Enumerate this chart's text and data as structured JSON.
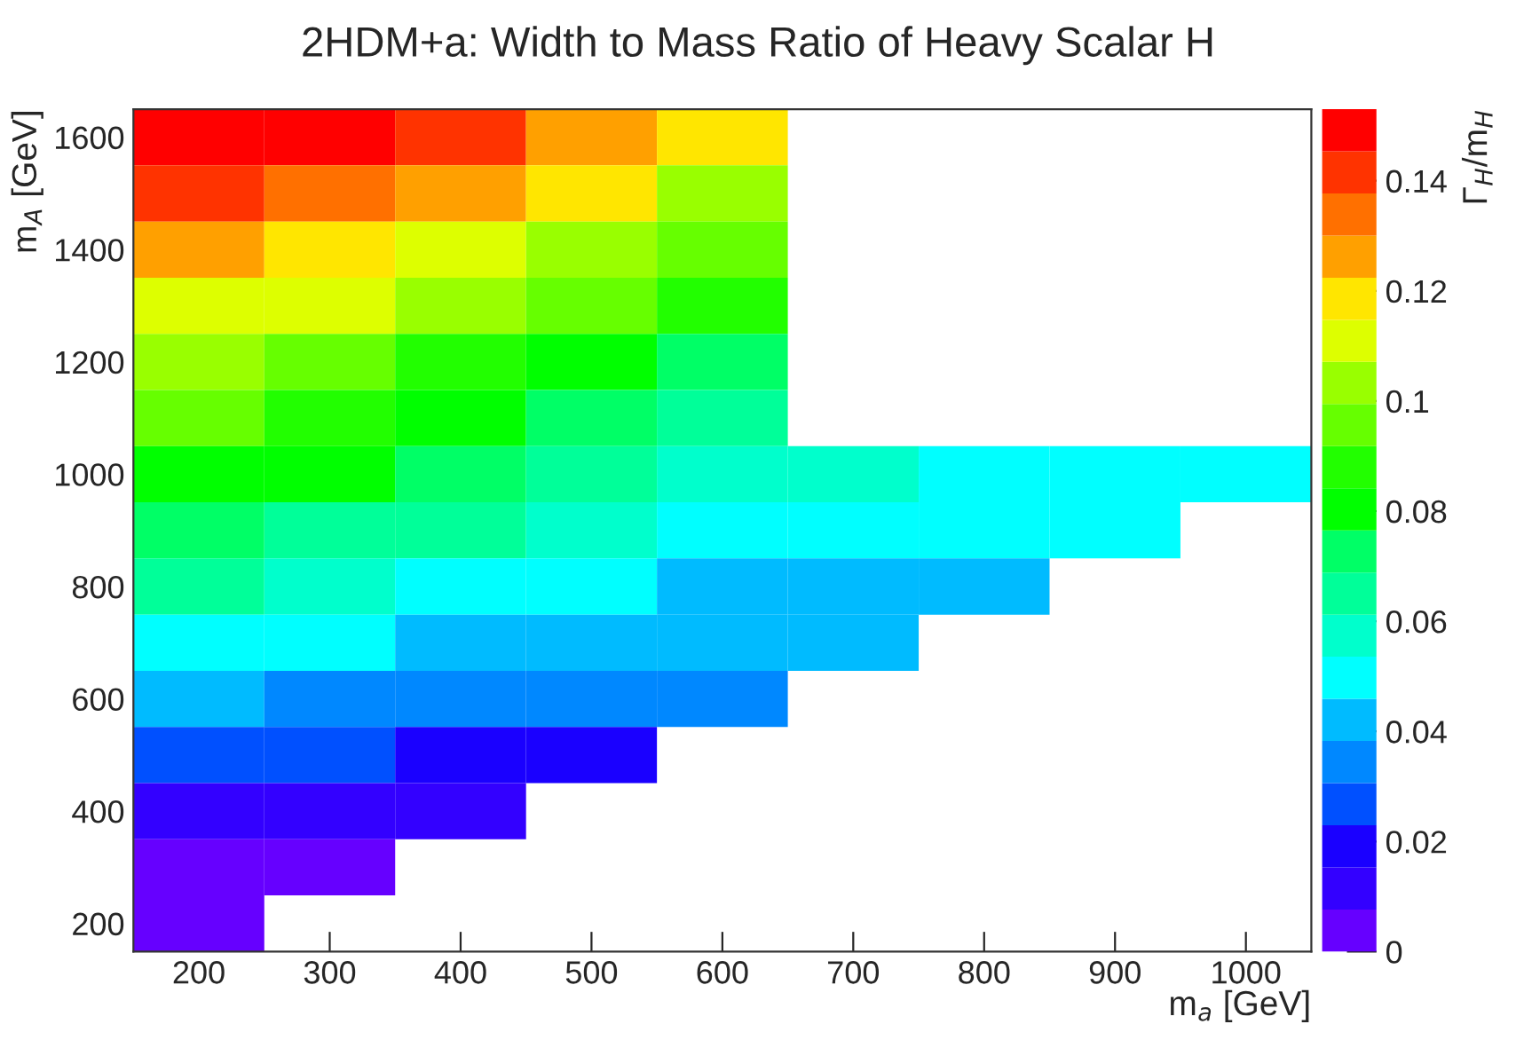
{
  "chart_data": {
    "type": "heatmap",
    "title": "2HDM+a: Width to Mass Ratio of Heavy Scalar H",
    "xlabel": "m$_{a}$ [GeV]",
    "ylabel": "m$_{A}$ [GeV]",
    "clabel": "Γ$_{H}$/m$_{H}$",
    "x": [
      200,
      300,
      400,
      500,
      600,
      700,
      800,
      900,
      1000
    ],
    "y": [
      1600,
      1500,
      1400,
      1300,
      1200,
      1100,
      1000,
      900,
      800,
      700,
      600,
      500,
      400,
      300,
      200
    ],
    "cells": [
      [
        0.149,
        0.149,
        0.142,
        0.126,
        0.119,
        null,
        null,
        null,
        null
      ],
      [
        0.142,
        0.134,
        0.126,
        0.119,
        0.103,
        null,
        null,
        null,
        null
      ],
      [
        0.126,
        0.119,
        0.111,
        0.103,
        0.096,
        null,
        null,
        null,
        null
      ],
      [
        0.111,
        0.111,
        0.103,
        0.096,
        0.088,
        null,
        null,
        null,
        null
      ],
      [
        0.103,
        0.096,
        0.088,
        0.08,
        0.073,
        null,
        null,
        null,
        null
      ],
      [
        0.096,
        0.088,
        0.08,
        0.073,
        0.065,
        null,
        null,
        null,
        null
      ],
      [
        0.08,
        0.08,
        0.073,
        0.065,
        0.057,
        0.057,
        0.05,
        0.05,
        0.05
      ],
      [
        0.073,
        0.065,
        0.065,
        0.057,
        0.05,
        0.05,
        0.05,
        0.05,
        null
      ],
      [
        0.065,
        0.057,
        0.05,
        0.05,
        0.042,
        0.042,
        0.042,
        null,
        null
      ],
      [
        0.05,
        0.05,
        0.042,
        0.042,
        0.042,
        0.042,
        null,
        null,
        null
      ],
      [
        0.042,
        0.034,
        0.034,
        0.034,
        0.034,
        null,
        null,
        null,
        null
      ],
      [
        0.027,
        0.027,
        0.019,
        0.019,
        null,
        null,
        null,
        null,
        null
      ],
      [
        0.011,
        0.011,
        0.011,
        null,
        null,
        null,
        null,
        null,
        null
      ],
      [
        0.004,
        0.004,
        null,
        null,
        null,
        null,
        null,
        null,
        null
      ],
      [
        0.004,
        null,
        null,
        null,
        null,
        null,
        null,
        null,
        null
      ]
    ],
    "colors": [
      "#6600ff",
      "#3300ff",
      "#1a00ff",
      "#0050ff",
      "#0088ff",
      "#00bbff",
      "#00ffff",
      "#00ffcc",
      "#00ff99",
      "#00ff66",
      "#00ff00",
      "#22ff00",
      "#66ff00",
      "#99ff00",
      "#ddff00",
      "#ffe600",
      "#ffa000",
      "#ff7000",
      "#ff3300",
      "#ff0000"
    ],
    "clim": [
      0,
      0.153
    ],
    "cticks": [
      0,
      0.02,
      0.04,
      0.06,
      0.08,
      0.1,
      0.12,
      0.14
    ],
    "xlim": [
      150,
      1050
    ],
    "xticks": [
      200,
      300,
      400,
      500,
      600,
      700,
      800,
      900,
      1000
    ],
    "ylim": [
      150,
      1650
    ],
    "yticks": [
      200,
      400,
      600,
      800,
      1000,
      1200,
      1400,
      1600
    ]
  }
}
